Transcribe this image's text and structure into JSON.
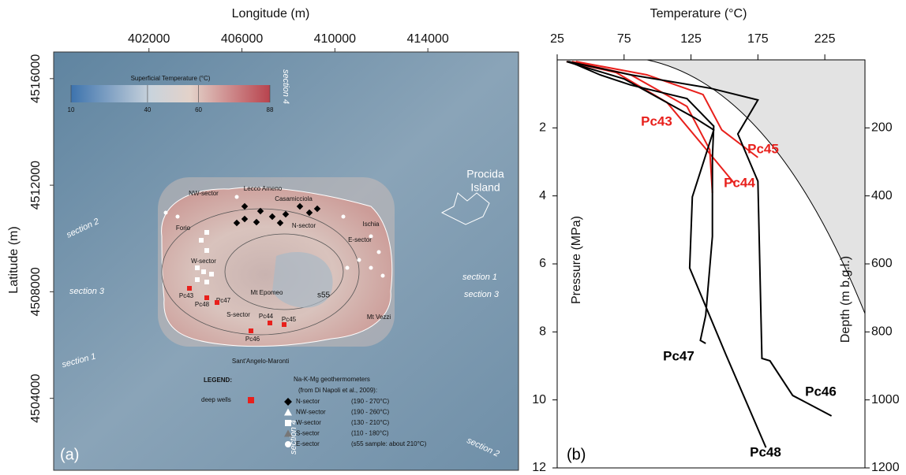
{
  "chart_data": [
    {
      "type": "map",
      "panel_label": "(a)",
      "x_label": "Longitude (m)",
      "y_label": "Latitude (m)",
      "xlim": [
        397900,
        417900
      ],
      "xticks": [
        402000,
        406000,
        410000,
        414000
      ],
      "ylim": [
        4501300,
        4517000
      ],
      "yticks": [
        4504000,
        4508000,
        4512000,
        4516000
      ],
      "colorbar": {
        "title": "Superficial Temperature (°C)",
        "clim": [
          10,
          88
        ],
        "ticks": [
          10,
          40,
          60,
          88
        ]
      },
      "annotations": [
        "section 4",
        "section 2",
        "section 3",
        "section 1",
        "section 4",
        "section 2",
        "section 1",
        "section 3",
        "Procida",
        "Island",
        "NW-sector",
        "Lecco Ameno",
        "Casamicciola",
        "Forio",
        "Ischia",
        "N-sector",
        "E-sector",
        "W-sector",
        "Mt Epomeo",
        "s55",
        "Pc43",
        "Pc48",
        "Pc47",
        "S-sector",
        "Pc44",
        "Pc45",
        "Pc46",
        "Mt Vezzi",
        "Sant'Angelo-Maronti"
      ],
      "legend": {
        "title": "LEGEND:",
        "wells": "deep wells",
        "geo_title": "Na-K-Mg geothermometers",
        "geo_source": "(from Di Napoli et al., 2009):",
        "items": [
          {
            "name": "N-sector",
            "range": "(190 - 270°C)"
          },
          {
            "name": "NW-sector",
            "range": "(190 - 260°C)"
          },
          {
            "name": "W-sector",
            "range": "(130 - 210°C)"
          },
          {
            "name": "S-sector",
            "range": "(110 - 180°C)"
          },
          {
            "name": "E-sector",
            "range": "(s55 sample: about 210°C)"
          }
        ]
      }
    },
    {
      "type": "line",
      "panel_label": "(b)",
      "x_label": "Temperature (°C)",
      "y_label": "Pressure (MPa)",
      "y2_label": "Depth (m b.g.l.)",
      "xlim": [
        25,
        255
      ],
      "xticks": [
        25,
        75,
        125,
        175,
        225
      ],
      "ylim": [
        0,
        12
      ],
      "yticks": [
        2,
        4,
        6,
        8,
        10,
        12
      ],
      "y2lim": [
        0,
        1200
      ],
      "y2ticks": [
        200,
        400,
        600,
        800,
        1000,
        1200
      ],
      "series": [
        {
          "name": "Pc43",
          "color": "#e8201c",
          "x": [
            32,
            69,
            107,
            134,
            157
          ],
          "values": [
            0.05,
            0.37,
            1.25,
            2.52,
            3.61
          ]
        },
        {
          "name": "Pc44",
          "color": "#e8201c",
          "x": [
            36,
            80,
            122,
            139,
            141
          ],
          "values": [
            0.05,
            0.44,
            1.37,
            2.64,
            3.91
          ]
        },
        {
          "name": "Pc45",
          "color": "#e8201c",
          "x": [
            39,
            92,
            134,
            148,
            175
          ],
          "values": [
            0.05,
            0.44,
            1.02,
            2.06,
            2.87
          ]
        },
        {
          "name": "Pc46",
          "color": "#000000",
          "x": [
            33,
            80,
            139,
            175,
            160,
            175,
            178,
            184,
            201,
            230
          ],
          "values": [
            0.05,
            0.44,
            0.83,
            1.18,
            2.18,
            3.57,
            8.78,
            8.85,
            9.87,
            10.47
          ]
        },
        {
          "name": "Pc47",
          "color": "#000000",
          "x": [
            34,
            57,
            80,
            122,
            142,
            141,
            141,
            136,
            132,
            136
          ],
          "values": [
            0.05,
            0.44,
            0.74,
            1.14,
            1.95,
            2.87,
            5.19,
            7.51,
            8.25,
            8.34
          ]
        },
        {
          "name": "Pc48",
          "color": "#000000",
          "x": [
            32,
            75,
            128,
            142,
            126,
            124,
            151,
            181
          ],
          "values": [
            0.05,
            0.56,
            1.71,
            2.06,
            4.03,
            6.12,
            8.66,
            11.4
          ]
        }
      ]
    }
  ]
}
